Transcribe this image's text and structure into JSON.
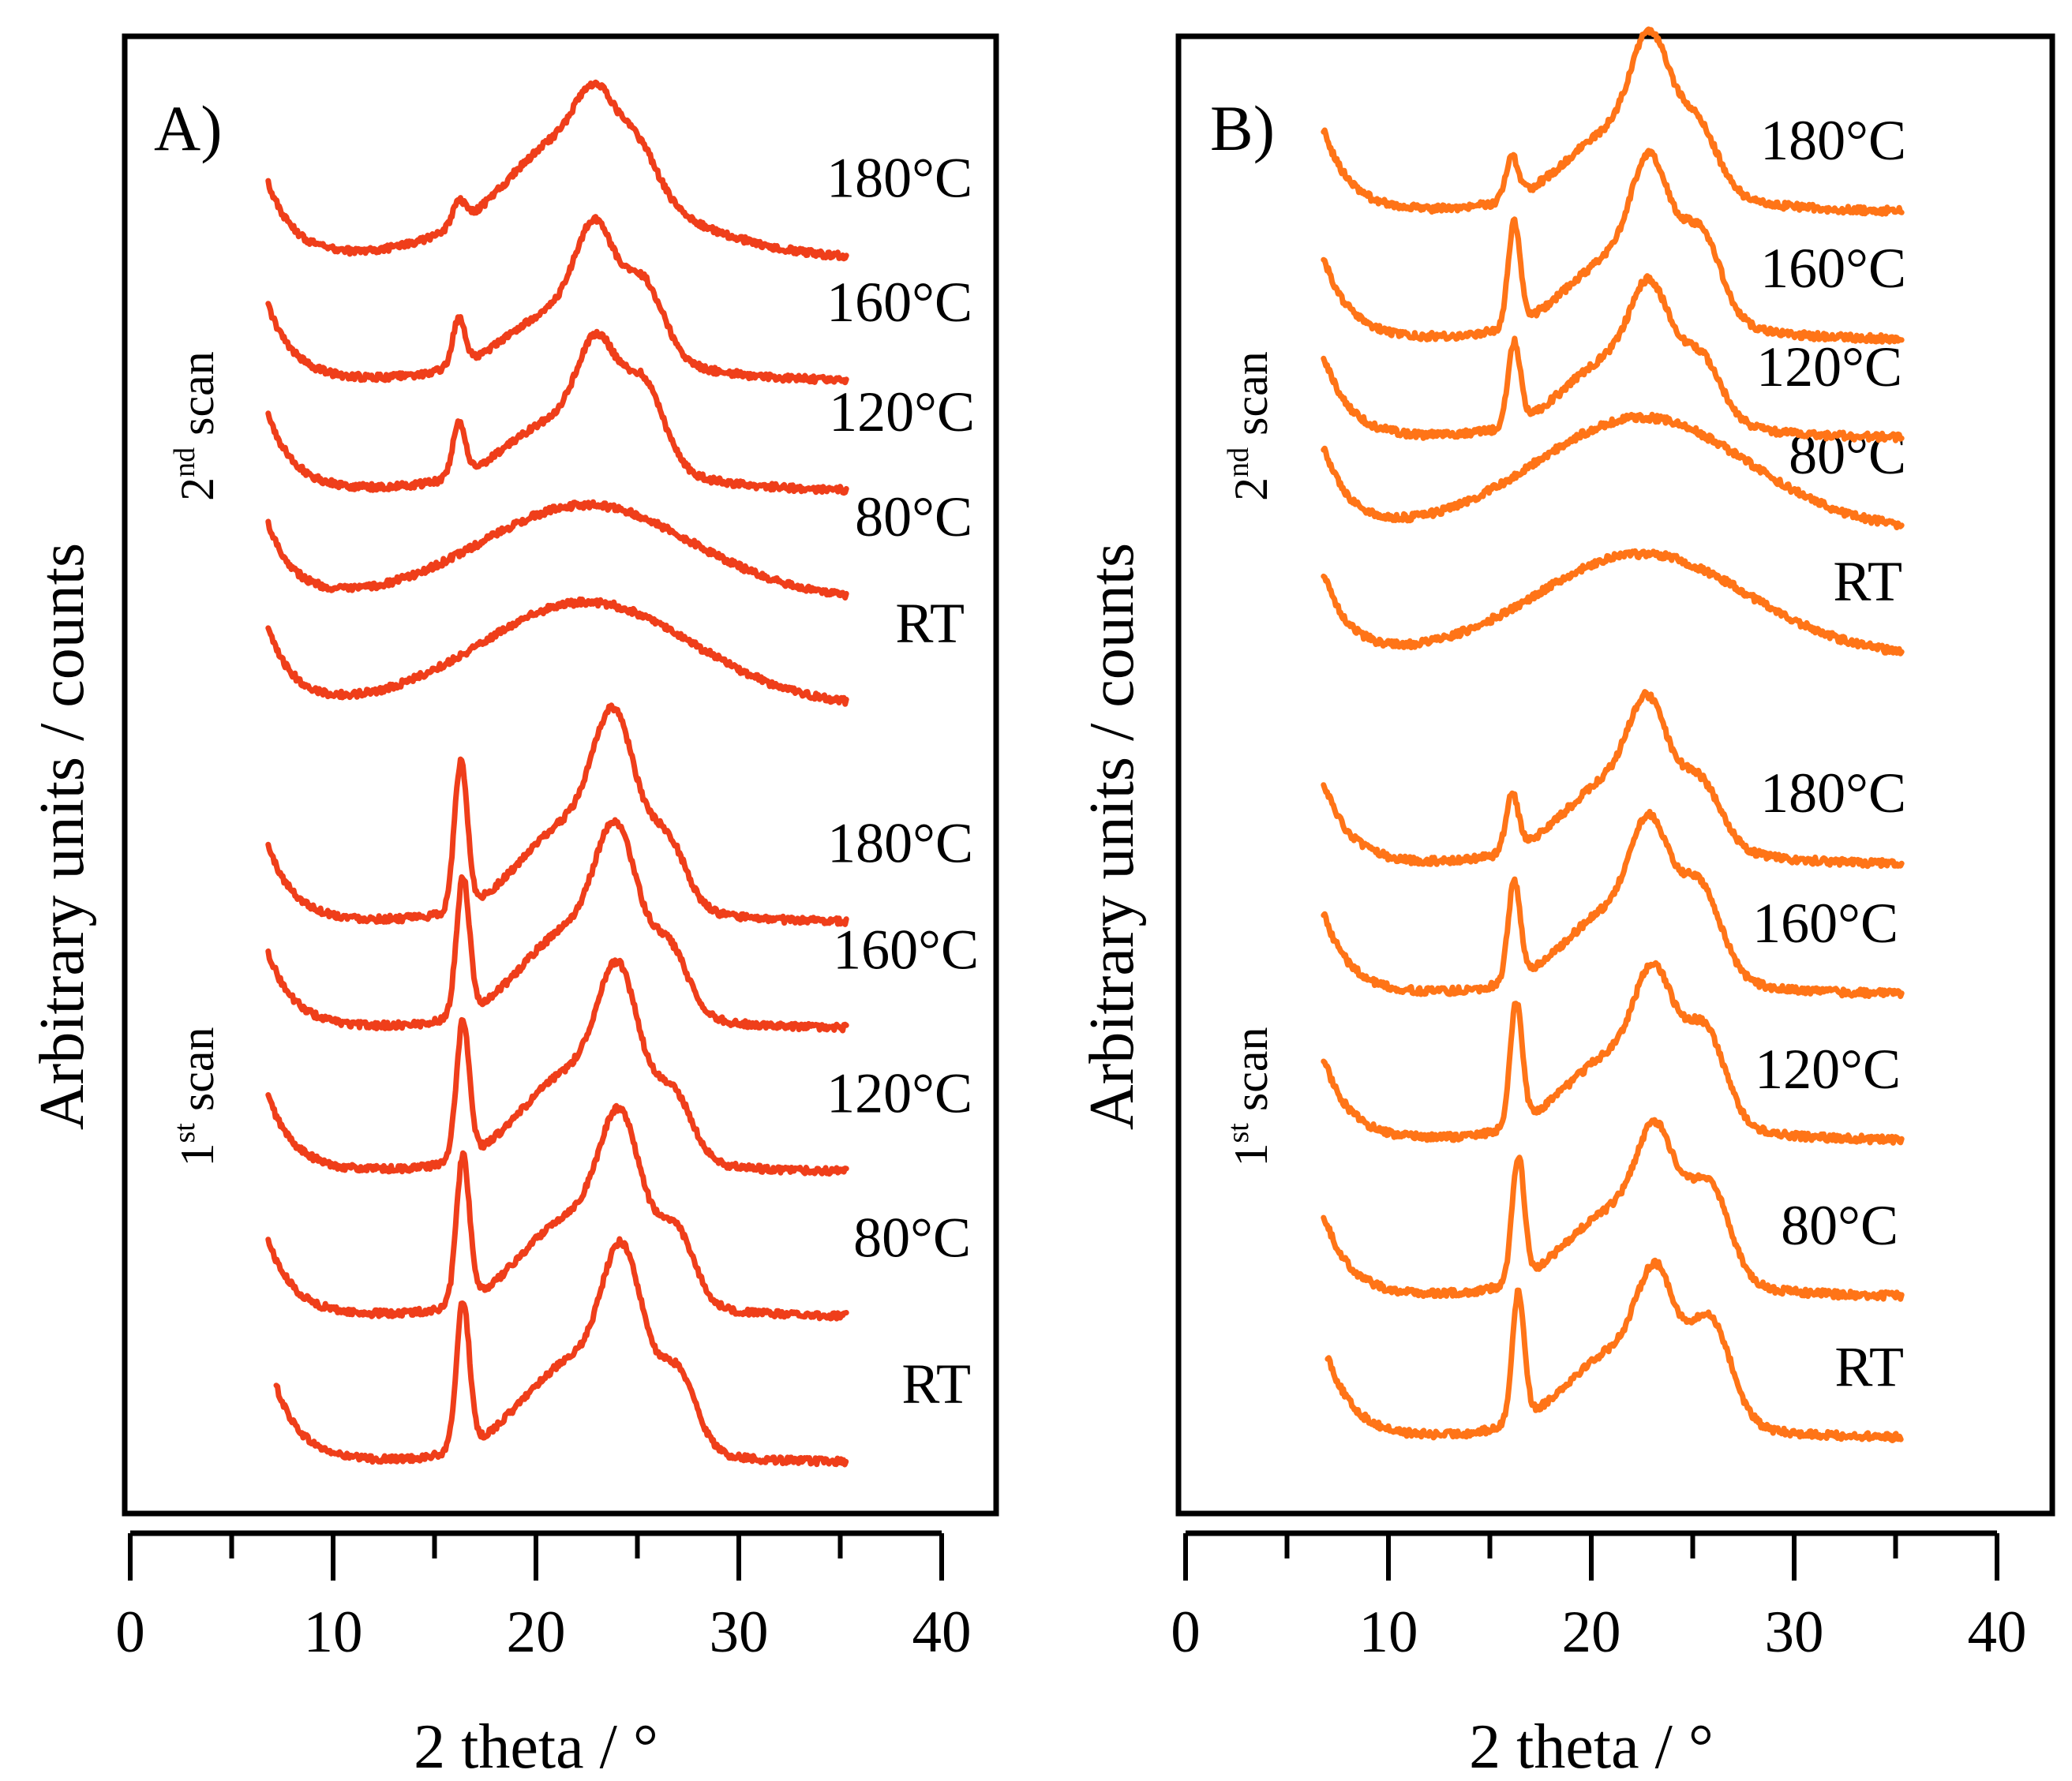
{
  "chart_data": [
    {
      "type": "line",
      "panel_label": "A)",
      "xlabel": "2 theta / °",
      "ylabel": "Arbitrary units / counts",
      "xlim": [
        0,
        40
      ],
      "xticks": [
        "0",
        "10",
        "20",
        "30",
        "40"
      ],
      "color": "#ef3e1a",
      "group_labels": {
        "first": {
          "main": "1",
          "sup": "st",
          "rest": " scan"
        },
        "second": {
          "main": "2",
          "sup": "nd",
          "rest": " scan"
        }
      },
      "series": [
        {
          "name": "RT",
          "scan": "1st",
          "order": 0,
          "start": 7.2,
          "baseline": 0,
          "sharp": [
            [
              16.4,
              1.55,
              0.32
            ]
          ],
          "broad": [
            [
              22.0,
              0.95,
              2.6
            ],
            [
              24.3,
              1.55,
              1.0
            ],
            [
              27.0,
              0.75,
              0.9
            ]
          ],
          "halo": 0
        },
        {
          "name": "80°C",
          "scan": "1st",
          "order": 1,
          "start": 6.8,
          "baseline": 0,
          "sharp": [
            [
              16.4,
              1.55,
              0.32
            ]
          ],
          "broad": [
            [
              22.0,
              0.95,
              2.6
            ],
            [
              24.2,
              1.4,
              1.0
            ],
            [
              26.9,
              0.7,
              0.9
            ]
          ],
          "halo": 0
        },
        {
          "name": "120°C",
          "scan": "1st",
          "order": 2,
          "start": 6.8,
          "baseline": 0,
          "sharp": [
            [
              16.4,
              1.45,
              0.32
            ]
          ],
          "broad": [
            [
              22.0,
              0.95,
              2.6
            ],
            [
              24.1,
              1.4,
              1.0
            ],
            [
              26.8,
              0.6,
              0.9
            ]
          ],
          "halo": 0
        },
        {
          "name": "160°C",
          "scan": "1st",
          "order": 3,
          "start": 6.8,
          "baseline": 0,
          "sharp": [
            [
              16.4,
              1.45,
              0.32
            ]
          ],
          "broad": [
            [
              22.0,
              0.95,
              2.6
            ],
            [
              24.0,
              1.35,
              1.0
            ],
            [
              26.6,
              0.6,
              0.9
            ]
          ],
          "halo": 0
        },
        {
          "name": "180°C",
          "scan": "1st",
          "order": 4,
          "start": 6.8,
          "baseline": 0,
          "sharp": [
            [
              16.3,
              1.55,
              0.32
            ]
          ],
          "broad": [
            [
              22.0,
              0.95,
              2.6
            ],
            [
              23.9,
              1.4,
              1.0
            ],
            [
              26.5,
              0.6,
              0.9
            ]
          ],
          "halo": 0
        },
        {
          "name": "RT",
          "scan": "2nd",
          "order": 5,
          "start": 6.8,
          "baseline": 0,
          "sharp": [],
          "broad": [],
          "halo": 1.1
        },
        {
          "name": "80°C",
          "scan": "2nd",
          "order": 6,
          "start": 6.8,
          "baseline": 0,
          "sharp": [],
          "broad": [],
          "halo": 1.0
        },
        {
          "name": "120°C",
          "scan": "2nd",
          "order": 7,
          "start": 6.8,
          "baseline": 0,
          "sharp": [
            [
              16.2,
              0.55,
              0.3
            ]
          ],
          "broad": [
            [
              21.5,
              0.6,
              2.6
            ],
            [
              23.0,
              0.9,
              0.9
            ],
            [
              25.3,
              0.8,
              1.0
            ]
          ],
          "halo": 0.2
        },
        {
          "name": "160°C",
          "scan": "2nd",
          "order": 8,
          "start": 6.8,
          "baseline": 0,
          "sharp": [
            [
              16.2,
              0.5,
              0.3
            ]
          ],
          "broad": [
            [
              21.5,
              0.6,
              2.6
            ],
            [
              22.9,
              0.95,
              0.9
            ],
            [
              25.3,
              0.7,
              1.0
            ]
          ],
          "halo": 0.2
        },
        {
          "name": "180°C",
          "scan": "2nd",
          "order": 9,
          "start": 6.8,
          "baseline": 0,
          "sharp": [
            [
              16.2,
              0.25,
              0.3
            ]
          ],
          "broad": [
            [
              21.5,
              0.7,
              2.6
            ],
            [
              22.9,
              0.6,
              0.9
            ],
            [
              25.0,
              0.45,
              1.0
            ]
          ],
          "halo": 0.6
        }
      ]
    },
    {
      "type": "line",
      "panel_label": "B)",
      "xlabel": "2 theta / °",
      "ylabel": "Arbitrary units / counts",
      "xlim": [
        0,
        40
      ],
      "xticks": [
        "0",
        "10",
        "20",
        "30",
        "40"
      ],
      "color": "#ff7417",
      "group_labels": {
        "first": {
          "main": "1",
          "sup": "st",
          "rest": " scan"
        },
        "second": {
          "main": "2",
          "sup": "nd",
          "rest": " scan"
        }
      },
      "series": [
        {
          "name": "RT",
          "scan": "1st",
          "order": 0,
          "start": 7.0,
          "baseline": 0,
          "sharp": [
            [
              16.4,
              1.25,
              0.3
            ]
          ],
          "broad": [
            [
              21.5,
              0.75,
              2.6
            ],
            [
              23.2,
              0.95,
              0.9
            ],
            [
              25.9,
              0.9,
              1.0
            ]
          ],
          "halo": 0
        },
        {
          "name": "80°C",
          "scan": "1st",
          "order": 1,
          "start": 6.8,
          "baseline": 0,
          "sharp": [
            [
              16.4,
              1.2,
              0.3
            ]
          ],
          "broad": [
            [
              21.5,
              0.75,
              2.6
            ],
            [
              23.2,
              0.95,
              0.9
            ],
            [
              25.8,
              0.85,
              1.0
            ]
          ],
          "halo": 0
        },
        {
          "name": "120°C",
          "scan": "1st",
          "order": 2,
          "start": 6.8,
          "baseline": 0,
          "sharp": [
            [
              16.3,
              1.2,
              0.3
            ]
          ],
          "broad": [
            [
              21.5,
              0.75,
              2.6
            ],
            [
              23.1,
              0.95,
              0.9
            ],
            [
              25.6,
              0.8,
              1.0
            ]
          ],
          "halo": 0
        },
        {
          "name": "160°C",
          "scan": "1st",
          "order": 3,
          "start": 6.8,
          "baseline": 0,
          "sharp": [
            [
              16.2,
              0.95,
              0.3
            ]
          ],
          "broad": [
            [
              21.5,
              0.75,
              2.6
            ],
            [
              22.9,
              0.95,
              0.9
            ],
            [
              25.4,
              0.75,
              1.0
            ]
          ],
          "halo": 0
        },
        {
          "name": "180°C",
          "scan": "1st",
          "order": 4,
          "start": 6.8,
          "baseline": 0,
          "sharp": [
            [
              16.1,
              0.55,
              0.3
            ]
          ],
          "broad": [
            [
              21.5,
              0.75,
              2.6
            ],
            [
              22.8,
              0.85,
              0.9
            ],
            [
              25.4,
              0.5,
              1.0
            ]
          ],
          "halo": 0
        },
        {
          "name": "RT",
          "scan": "2nd",
          "order": 5,
          "start": 6.8,
          "baseline": 0,
          "sharp": [],
          "broad": [],
          "halo": 1.0
        },
        {
          "name": "80°C",
          "scan": "2nd",
          "order": 6,
          "start": 6.8,
          "baseline": 0,
          "sharp": [],
          "broad": [],
          "halo": 1.1
        },
        {
          "name": "120°C",
          "scan": "2nd",
          "order": 7,
          "start": 6.8,
          "baseline": 0,
          "sharp": [
            [
              16.2,
              0.8,
              0.3
            ]
          ],
          "broad": [
            [
              21.5,
              0.7,
              2.6
            ],
            [
              22.9,
              0.8,
              0.9
            ],
            [
              25.4,
              0.5,
              1.0
            ]
          ],
          "halo": 0
        },
        {
          "name": "160°C",
          "scan": "2nd",
          "order": 8,
          "start": 6.8,
          "baseline": 0,
          "sharp": [
            [
              16.2,
              1.0,
              0.3
            ]
          ],
          "broad": [
            [
              21.5,
              0.7,
              2.6
            ],
            [
              22.9,
              1.05,
              0.9
            ],
            [
              25.4,
              0.75,
              1.0
            ]
          ],
          "halo": 0
        },
        {
          "name": "180°C",
          "scan": "2nd",
          "order": 9,
          "start": 6.8,
          "baseline": 0,
          "sharp": [
            [
              16.1,
              0.4,
              0.3
            ]
          ],
          "broad": [
            [
              21.5,
              0.7,
              2.6
            ],
            [
              22.9,
              1.0,
              0.9
            ],
            [
              25.2,
              0.55,
              1.0
            ]
          ],
          "halo": 0
        }
      ]
    }
  ]
}
